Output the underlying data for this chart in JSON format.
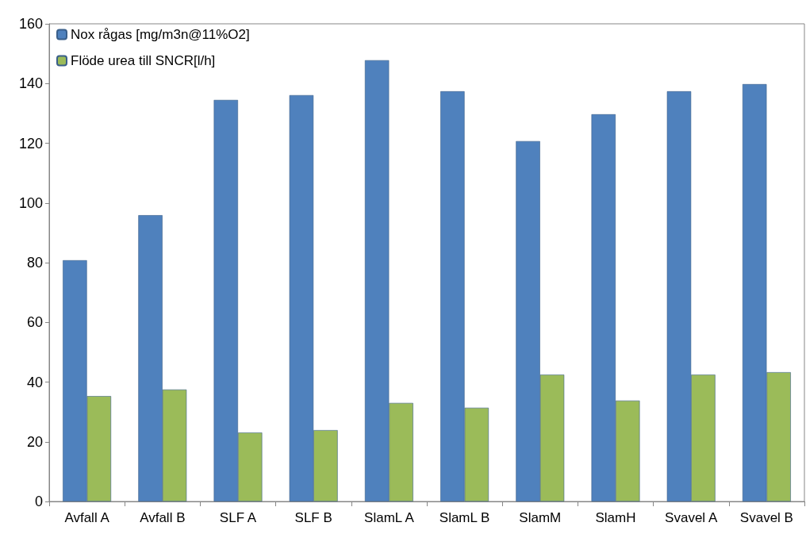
{
  "chart_data": {
    "type": "bar",
    "categories": [
      "Avfall A",
      "Avfall B",
      "SLF A",
      "SLF B",
      "SlamL A",
      "SlamL B",
      "SlamM",
      "SlamH",
      "Svavel A",
      "Svavel B"
    ],
    "series": [
      {
        "name": "Nox rågas [mg/m3n@11%O2]",
        "color": "#4f81bd",
        "values": [
          80.8,
          95.9,
          134.5,
          136.1,
          147.8,
          137.4,
          120.7,
          129.7,
          137.4,
          139.8
        ]
      },
      {
        "name": "Flöde urea till SNCR[l/h]",
        "color": "#9bbb59",
        "values": [
          35.3,
          37.5,
          23.1,
          23.9,
          33.0,
          31.4,
          42.5,
          33.8,
          42.5,
          43.3
        ]
      }
    ],
    "ylim": [
      0,
      160
    ],
    "yticks": [
      0,
      20,
      40,
      60,
      80,
      100,
      120,
      140,
      160
    ],
    "grid": false,
    "legend": "top left"
  }
}
